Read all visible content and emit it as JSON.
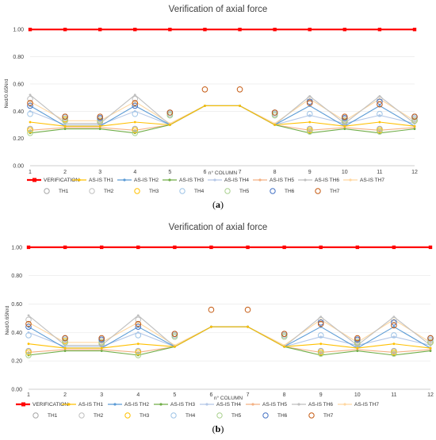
{
  "chart_data": [
    {
      "type": "line",
      "panel": "(a)",
      "panel_letter": "a",
      "title": "Verification of axial force",
      "xlabel": "n° COLUMN",
      "ylabel": "Ned/0.65Nrd",
      "ylim": [
        0,
        1.1
      ],
      "yticks": [
        "0.00",
        "0.20",
        "0.40",
        "0.60",
        "0.80",
        "1.00"
      ],
      "categories": [
        "1",
        "2",
        "3",
        "4",
        "5",
        "6",
        "7",
        "8",
        "9",
        "10",
        "11",
        "12"
      ],
      "series": [
        {
          "name": "VERIFICATION",
          "kind": "line",
          "color": "#ff0000",
          "values": [
            1,
            1,
            1,
            1,
            1,
            1,
            1,
            1,
            1,
            1,
            1,
            1
          ]
        },
        {
          "name": "AS-IS TH1",
          "kind": "line",
          "color": "#ffc000",
          "values": [
            0.32,
            0.29,
            0.29,
            0.32,
            0.3,
            0.44,
            0.44,
            0.3,
            0.32,
            0.29,
            0.32,
            0.29
          ]
        },
        {
          "name": "AS-IS TH2",
          "kind": "line",
          "color": "#5b9bd5",
          "values": [
            0.44,
            0.29,
            0.29,
            0.44,
            0.3,
            0.44,
            0.44,
            0.3,
            0.44,
            0.29,
            0.44,
            0.29
          ]
        },
        {
          "name": "AS-IS TH3",
          "kind": "line",
          "color": "#70ad47",
          "values": [
            0.24,
            0.27,
            0.27,
            0.24,
            0.3,
            0.44,
            0.44,
            0.3,
            0.24,
            0.27,
            0.24,
            0.27
          ]
        },
        {
          "name": "AS-IS TH4",
          "kind": "line",
          "color": "#b4c7e7",
          "values": [
            0.4,
            0.3,
            0.3,
            0.4,
            0.3,
            0.44,
            0.44,
            0.3,
            0.37,
            0.31,
            0.37,
            0.31
          ]
        },
        {
          "name": "AS-IS TH5",
          "kind": "line",
          "color": "#f4b183",
          "values": [
            0.26,
            0.28,
            0.28,
            0.26,
            0.3,
            0.44,
            0.44,
            0.3,
            0.26,
            0.28,
            0.26,
            0.28
          ]
        },
        {
          "name": "AS-IS TH6",
          "kind": "line",
          "color": "#bfbfbf",
          "values": [
            0.52,
            0.31,
            0.31,
            0.52,
            0.3,
            0.44,
            0.44,
            0.3,
            0.51,
            0.31,
            0.51,
            0.31
          ]
        },
        {
          "name": "AS-IS TH7",
          "kind": "line",
          "color": "#ffd7a0",
          "values": [
            0.47,
            0.33,
            0.33,
            0.47,
            0.31,
            0.44,
            0.44,
            0.31,
            0.49,
            0.33,
            0.49,
            0.33
          ]
        },
        {
          "name": "TH1",
          "kind": "marker",
          "color": "#a6a6a6",
          "values": [
            0.27,
            0.33,
            0.32,
            0.27,
            0.37,
            null,
            null,
            0.37,
            0.27,
            0.32,
            0.27,
            0.33
          ]
        },
        {
          "name": "TH2",
          "kind": "marker",
          "color": "#bfbfbf",
          "values": [
            0.49,
            0.34,
            0.34,
            0.49,
            0.38,
            null,
            null,
            0.38,
            0.49,
            0.34,
            0.49,
            0.34
          ]
        },
        {
          "name": "TH3",
          "kind": "marker",
          "color": "#ffc000",
          "values": [
            0.26,
            0.34,
            0.33,
            0.26,
            0.38,
            null,
            null,
            0.38,
            0.26,
            0.33,
            0.26,
            0.33
          ]
        },
        {
          "name": "TH4",
          "kind": "marker",
          "color": "#9dc3e6",
          "values": [
            0.38,
            0.35,
            0.35,
            0.38,
            0.38,
            null,
            null,
            0.38,
            0.38,
            0.35,
            0.38,
            0.35
          ]
        },
        {
          "name": "TH5",
          "kind": "marker",
          "color": "#a9d18e",
          "values": [
            0.24,
            0.33,
            0.33,
            0.24,
            0.37,
            null,
            null,
            0.37,
            0.25,
            0.33,
            0.25,
            0.33
          ]
        },
        {
          "name": "TH6",
          "kind": "marker",
          "color": "#4472c4",
          "values": [
            0.44,
            0.36,
            0.35,
            0.44,
            0.39,
            null,
            null,
            0.39,
            0.47,
            0.35,
            0.47,
            0.36
          ]
        },
        {
          "name": "TH7",
          "kind": "marker",
          "color": "#c55a11",
          "values": [
            0.46,
            0.36,
            0.36,
            0.46,
            0.39,
            0.56,
            0.56,
            0.39,
            0.46,
            0.36,
            0.45,
            0.36
          ]
        }
      ]
    },
    {
      "type": "line",
      "panel": "(b)",
      "panel_letter": "b",
      "title": "Verification of axial force",
      "xlabel": "n° COLUMN",
      "ylabel": "Ned/0.65Nrd",
      "ylim": [
        0,
        1.1
      ],
      "yticks": [
        "0.00",
        "0.20",
        "0.40",
        "0.60",
        "0.80",
        "1.00"
      ],
      "categories": [
        "1",
        "2",
        "3",
        "4",
        "5",
        "6",
        "7",
        "8",
        "9",
        "10",
        "11",
        "12"
      ],
      "series": [
        {
          "name": "VERIFICATION",
          "kind": "line",
          "color": "#ff0000",
          "values": [
            1,
            1,
            1,
            1,
            1,
            1,
            1,
            1,
            1,
            1,
            1,
            1
          ]
        },
        {
          "name": "AS-IS TH1",
          "kind": "line",
          "color": "#ffc000",
          "values": [
            0.32,
            0.29,
            0.29,
            0.32,
            0.3,
            0.44,
            0.44,
            0.3,
            0.32,
            0.29,
            0.32,
            0.29
          ]
        },
        {
          "name": "AS-IS TH2",
          "kind": "line",
          "color": "#5b9bd5",
          "values": [
            0.44,
            0.29,
            0.29,
            0.44,
            0.3,
            0.44,
            0.44,
            0.3,
            0.44,
            0.29,
            0.44,
            0.29
          ]
        },
        {
          "name": "AS-IS TH3",
          "kind": "line",
          "color": "#70ad47",
          "values": [
            0.24,
            0.27,
            0.27,
            0.24,
            0.3,
            0.44,
            0.44,
            0.3,
            0.24,
            0.27,
            0.24,
            0.27
          ]
        },
        {
          "name": "AS-IS TH4",
          "kind": "line",
          "color": "#b4c7e7",
          "values": [
            0.4,
            0.3,
            0.3,
            0.4,
            0.3,
            0.44,
            0.44,
            0.3,
            0.37,
            0.31,
            0.37,
            0.31
          ]
        },
        {
          "name": "AS-IS TH5",
          "kind": "line",
          "color": "#f4b183",
          "values": [
            0.26,
            0.28,
            0.28,
            0.26,
            0.3,
            0.44,
            0.44,
            0.3,
            0.26,
            0.28,
            0.26,
            0.28
          ]
        },
        {
          "name": "AS-IS TH6",
          "kind": "line",
          "color": "#bfbfbf",
          "values": [
            0.52,
            0.31,
            0.31,
            0.52,
            0.3,
            0.44,
            0.44,
            0.3,
            0.51,
            0.31,
            0.51,
            0.31
          ]
        },
        {
          "name": "AS-IS TH7",
          "kind": "line",
          "color": "#ffd7a0",
          "values": [
            0.47,
            0.33,
            0.33,
            0.47,
            0.31,
            0.44,
            0.44,
            0.31,
            0.49,
            0.33,
            0.49,
            0.33
          ]
        },
        {
          "name": "TH1",
          "kind": "marker",
          "color": "#a6a6a6",
          "values": [
            0.27,
            0.33,
            0.32,
            0.27,
            0.37,
            null,
            null,
            0.37,
            0.27,
            0.32,
            0.27,
            0.33
          ]
        },
        {
          "name": "TH2",
          "kind": "marker",
          "color": "#bfbfbf",
          "values": [
            0.49,
            0.34,
            0.34,
            0.49,
            0.38,
            null,
            null,
            0.38,
            0.49,
            0.34,
            0.49,
            0.34
          ]
        },
        {
          "name": "TH3",
          "kind": "marker",
          "color": "#ffc000",
          "values": [
            0.26,
            0.34,
            0.33,
            0.26,
            0.38,
            null,
            null,
            0.38,
            0.26,
            0.33,
            0.26,
            0.33
          ]
        },
        {
          "name": "TH4",
          "kind": "marker",
          "color": "#9dc3e6",
          "values": [
            0.38,
            0.35,
            0.35,
            0.38,
            0.38,
            null,
            null,
            0.38,
            0.38,
            0.35,
            0.38,
            0.35
          ]
        },
        {
          "name": "TH5",
          "kind": "marker",
          "color": "#a9d18e",
          "values": [
            0.24,
            0.33,
            0.33,
            0.24,
            0.37,
            null,
            null,
            0.37,
            0.25,
            0.33,
            0.25,
            0.33
          ]
        },
        {
          "name": "TH6",
          "kind": "marker",
          "color": "#4472c4",
          "values": [
            0.44,
            0.36,
            0.35,
            0.44,
            0.39,
            null,
            null,
            0.39,
            0.47,
            0.35,
            0.47,
            0.36
          ]
        },
        {
          "name": "TH7",
          "kind": "marker",
          "color": "#c55a11",
          "values": [
            0.46,
            0.36,
            0.36,
            0.46,
            0.39,
            0.56,
            0.56,
            0.39,
            0.46,
            0.36,
            0.45,
            0.36
          ]
        }
      ]
    }
  ]
}
